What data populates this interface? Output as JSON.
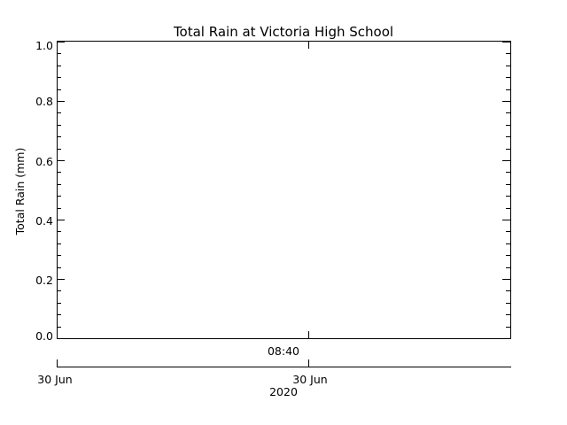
{
  "chart_data": {
    "type": "line",
    "title": "Total Rain at Victoria High School",
    "ylabel": "Total Rain (mm)",
    "xlabel": "",
    "ylim": [
      0.0,
      1.0
    ],
    "y_ticks": [
      "0.0",
      "0.2",
      "0.4",
      "0.6",
      "0.8",
      "1.0"
    ],
    "y_tick_values": [
      0.0,
      0.2,
      0.4,
      0.6,
      0.8,
      1.0
    ],
    "y_minor_per_major": 5,
    "x_time_tick": "08:40",
    "x_date_ticks": [
      "30 Jun",
      "30 Jun"
    ],
    "x_year": "2020",
    "grid": false,
    "series": [
      {
        "values": []
      }
    ],
    "colors": {
      "axis": "#000000",
      "background": "#ffffff"
    }
  }
}
